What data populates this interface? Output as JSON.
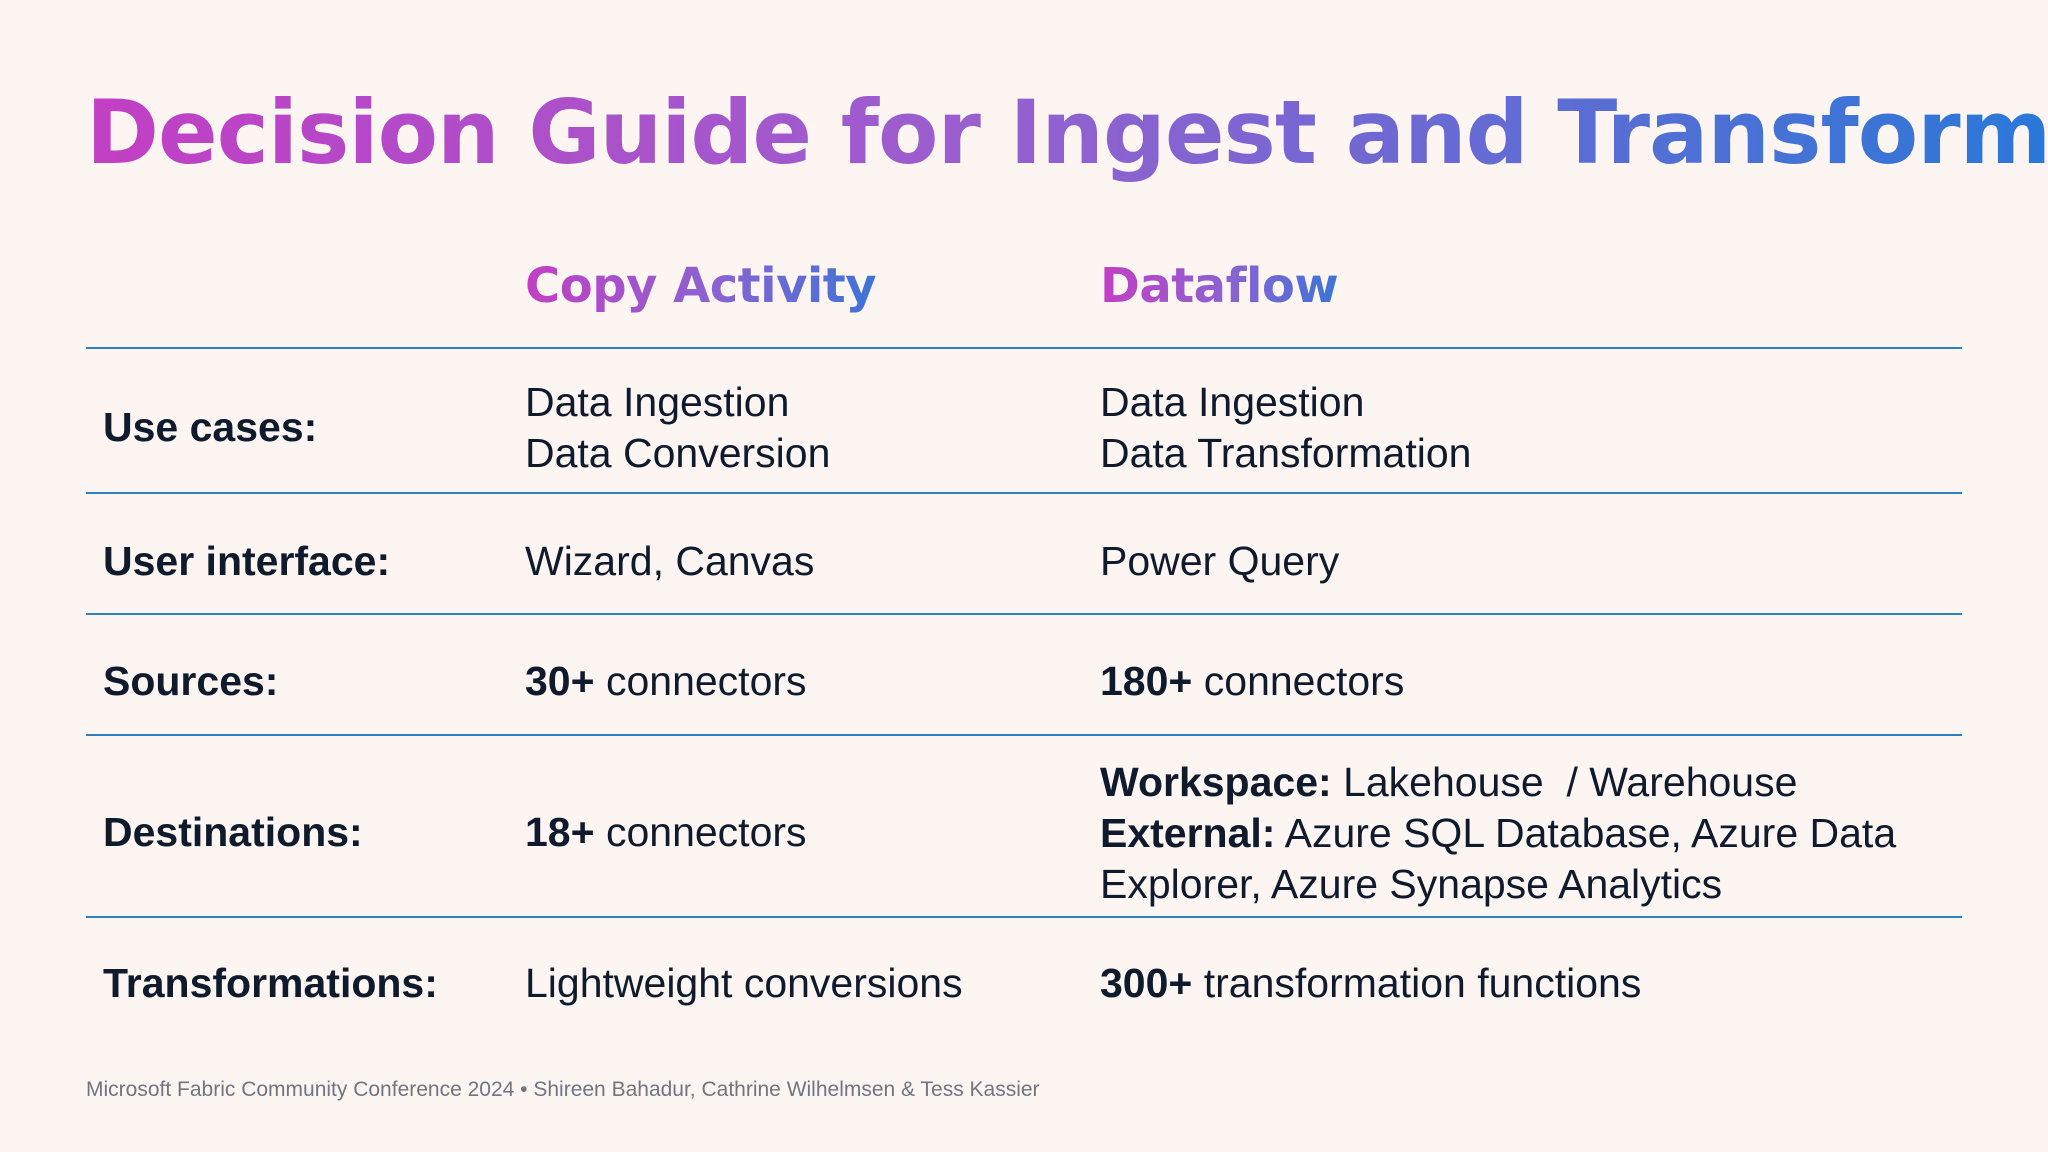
{
  "slide": {
    "title": "Decision Guide for Ingest and Transform",
    "columns": {
      "copy_activity": "Copy Activity",
      "dataflow": "Dataflow"
    },
    "rows": {
      "use_cases": {
        "label": "Use cases:",
        "copy_activity": [
          "Data Ingestion",
          "Data Conversion"
        ],
        "dataflow": [
          "Data Ingestion",
          "Data Transformation"
        ]
      },
      "user_interface": {
        "label": "User interface:",
        "copy_activity": "Wizard, Canvas",
        "dataflow": "Power Query"
      },
      "sources": {
        "label": "Sources:",
        "copy_activity": {
          "count": "30+",
          "text": "connectors"
        },
        "dataflow": {
          "count": "180+",
          "text": "connectors"
        }
      },
      "destinations": {
        "label": "Destinations:",
        "copy_activity": {
          "count": "18+",
          "text": "connectors"
        },
        "dataflow": {
          "workspace_label": "Workspace:",
          "workspace_value": "Lakehouse  / Warehouse",
          "external_label": "External:",
          "external_value_line1": "Azure SQL Database, Azure Data",
          "external_value_line2": "Explorer, Azure Synapse Analytics"
        }
      },
      "transformations": {
        "label": "Transformations:",
        "copy_activity": "Lightweight conversions",
        "dataflow": {
          "count": "300+",
          "text": "transformation functions"
        }
      }
    },
    "footer": "Microsoft Fabric Community Conference 2024 • Shireen Bahadur, Cathrine Wilhelmsen & Tess Kassier",
    "colors": {
      "background": "#fdf5f2",
      "text": "#0f1b2d",
      "rule": "#2f7fc3",
      "gradient_start": "#c23fc4",
      "gradient_end": "#2a78d8",
      "footer_text": "#6f7680"
    }
  }
}
